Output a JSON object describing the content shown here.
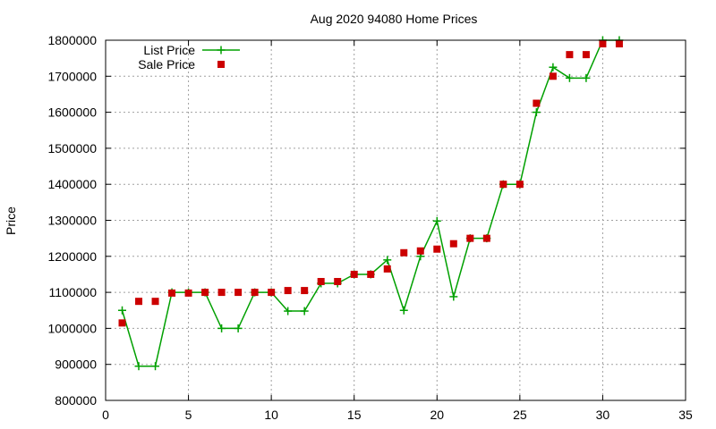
{
  "chart_data": {
    "type": "line",
    "title": "Aug 2020 94080 Home Prices",
    "xlabel": "",
    "ylabel": "Price",
    "xlim": [
      0,
      35
    ],
    "ylim": [
      800000,
      1800000
    ],
    "xticks": [
      0,
      5,
      10,
      15,
      20,
      25,
      30,
      35
    ],
    "yticks": [
      800000,
      900000,
      1000000,
      1100000,
      1200000,
      1300000,
      1400000,
      1500000,
      1600000,
      1700000,
      1800000
    ],
    "grid": true,
    "legend_position": "top-left",
    "series": [
      {
        "name": "List Price",
        "style": "line-with-plus-markers",
        "color": "#00a000",
        "x": [
          1,
          2,
          3,
          4,
          5,
          6,
          7,
          8,
          9,
          10,
          11,
          12,
          13,
          14,
          15,
          16,
          17,
          18,
          19,
          20,
          21,
          22,
          23,
          24,
          25,
          26,
          27,
          28,
          29,
          30,
          31
        ],
        "y": [
          1050000,
          895000,
          895000,
          1100000,
          1100000,
          1100000,
          1000000,
          1000000,
          1100000,
          1100000,
          1048000,
          1048000,
          1125000,
          1125000,
          1150000,
          1150000,
          1190000,
          1050000,
          1200000,
          1298000,
          1088000,
          1250000,
          1250000,
          1400000,
          1400000,
          1600000,
          1725000,
          1695000,
          1695000,
          1800000,
          1800000
        ]
      },
      {
        "name": "Sale Price",
        "style": "square-markers",
        "color": "#cc0000",
        "x": [
          1,
          2,
          3,
          4,
          5,
          6,
          7,
          8,
          9,
          10,
          11,
          12,
          13,
          14,
          15,
          16,
          17,
          18,
          19,
          20,
          21,
          22,
          23,
          24,
          25,
          26,
          27,
          28,
          29,
          30,
          31
        ],
        "y": [
          1015000,
          1075000,
          1075000,
          1098000,
          1098000,
          1100000,
          1100000,
          1100000,
          1100000,
          1100000,
          1105000,
          1105000,
          1130000,
          1130000,
          1150000,
          1150000,
          1165000,
          1210000,
          1215000,
          1220000,
          1235000,
          1250000,
          1250000,
          1400000,
          1400000,
          1625000,
          1700000,
          1760000,
          1760000,
          1790000,
          1790000
        ]
      }
    ]
  }
}
